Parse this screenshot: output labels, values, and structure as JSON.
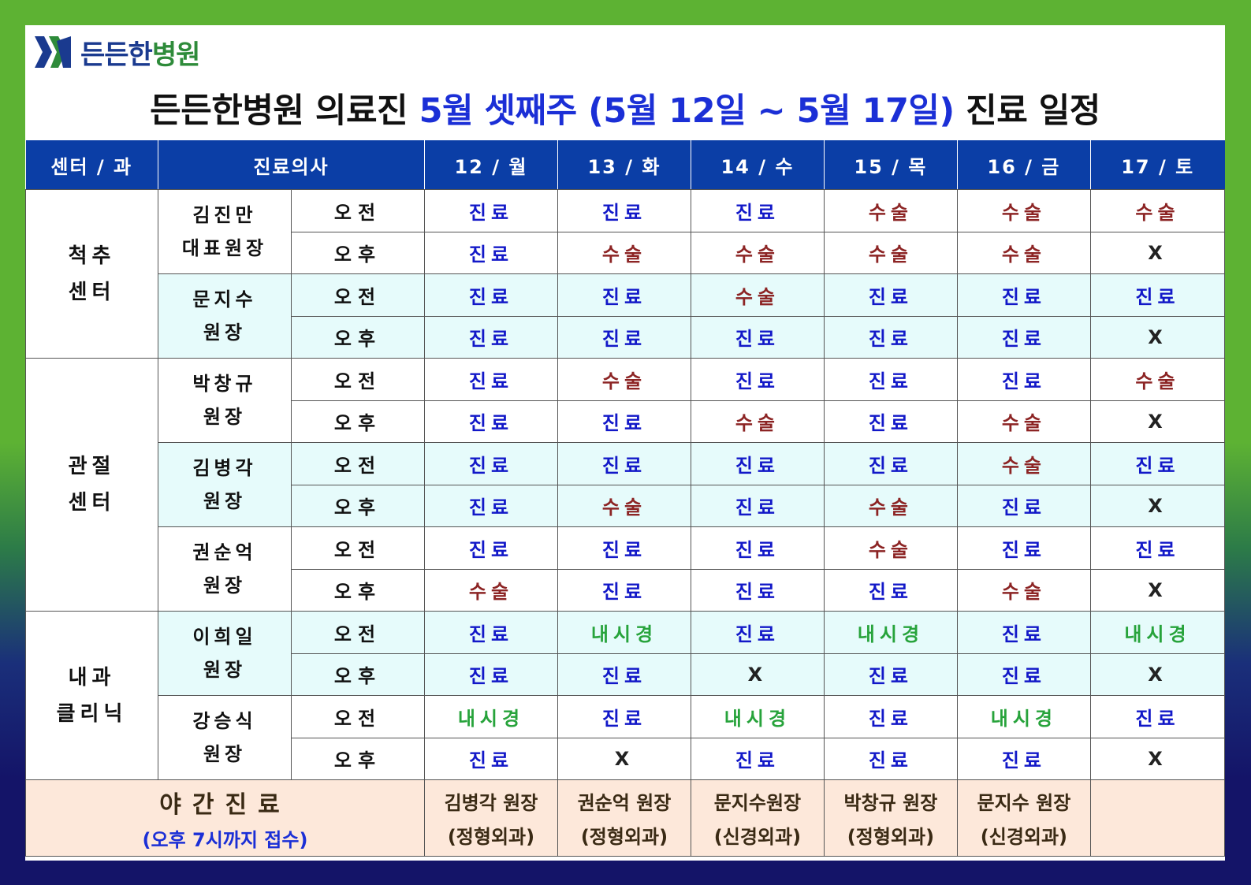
{
  "logo": {
    "text_dark": "든든한",
    "text_green": "병원"
  },
  "title": {
    "prefix": "든든한병원 의료진",
    "highlight": "5월 셋째주 (5월 12일 ~ 5월 17일)",
    "suffix": "진료 일정"
  },
  "header": [
    "센터 / 과",
    "진료의사",
    "12 / 월",
    "13 / 화",
    "14 / 수",
    "15 / 목",
    "16 / 금",
    "17 / 토"
  ],
  "labels": {
    "am": "오전",
    "pm": "오후"
  },
  "centers": [
    {
      "name_line1": "척추",
      "name_line2": "센터"
    },
    {
      "name_line1": "관절",
      "name_line2": "센터"
    },
    {
      "name_line1": "내과",
      "name_line2": "클리닉"
    }
  ],
  "doctors": [
    {
      "name": "김진만",
      "title": "대표원장",
      "am": [
        "진료",
        "진료",
        "진료",
        "수술",
        "수술",
        "수술"
      ],
      "pm": [
        "진료",
        "수술",
        "수술",
        "수술",
        "수술",
        "X"
      ]
    },
    {
      "name": "문지수",
      "title": "원장",
      "am": [
        "진료",
        "진료",
        "수술",
        "진료",
        "진료",
        "진료"
      ],
      "pm": [
        "진료",
        "진료",
        "진료",
        "진료",
        "진료",
        "X"
      ]
    },
    {
      "name": "박창규",
      "title": "원장",
      "am": [
        "진료",
        "수술",
        "진료",
        "진료",
        "진료",
        "수술"
      ],
      "pm": [
        "진료",
        "진료",
        "수술",
        "진료",
        "수술",
        "X"
      ]
    },
    {
      "name": "김병각",
      "title": "원장",
      "am": [
        "진료",
        "진료",
        "진료",
        "진료",
        "수술",
        "진료"
      ],
      "pm": [
        "진료",
        "수술",
        "진료",
        "수술",
        "진료",
        "X"
      ]
    },
    {
      "name": "권순억",
      "title": "원장",
      "am": [
        "진료",
        "진료",
        "진료",
        "수술",
        "진료",
        "진료"
      ],
      "pm": [
        "수술",
        "진료",
        "진료",
        "진료",
        "수술",
        "X"
      ]
    },
    {
      "name": "이희일",
      "title": "원장",
      "am": [
        "진료",
        "내시경",
        "진료",
        "내시경",
        "진료",
        "내시경"
      ],
      "pm": [
        "진료",
        "진료",
        "X",
        "진료",
        "진료",
        "X"
      ]
    },
    {
      "name": "강승식",
      "title": "원장",
      "am": [
        "내시경",
        "진료",
        "내시경",
        "진료",
        "내시경",
        "진료"
      ],
      "pm": [
        "진료",
        "X",
        "진료",
        "진료",
        "진료",
        "X"
      ]
    }
  ],
  "night": {
    "label": "야간진료",
    "note": "(오후 7시까지 접수)",
    "doctors": [
      {
        "name": "김병각 원장",
        "dept": "(정형외과)"
      },
      {
        "name": "권순억 원장",
        "dept": "(정형외과)"
      },
      {
        "name": "문지수원장",
        "dept": "(신경외과)"
      },
      {
        "name": "박창규 원장",
        "dept": "(정형외과)"
      },
      {
        "name": "문지수 원장",
        "dept": "(신경외과)"
      },
      {
        "name": "",
        "dept": ""
      }
    ]
  },
  "colors": {
    "jinryo": "#1218c8",
    "susul": "#8c2424",
    "naesigyeong": "#27a33b",
    "header_bg": "#0b3ea6",
    "tint_row": "#e6fbfb",
    "night_bg": "#fde8da"
  }
}
